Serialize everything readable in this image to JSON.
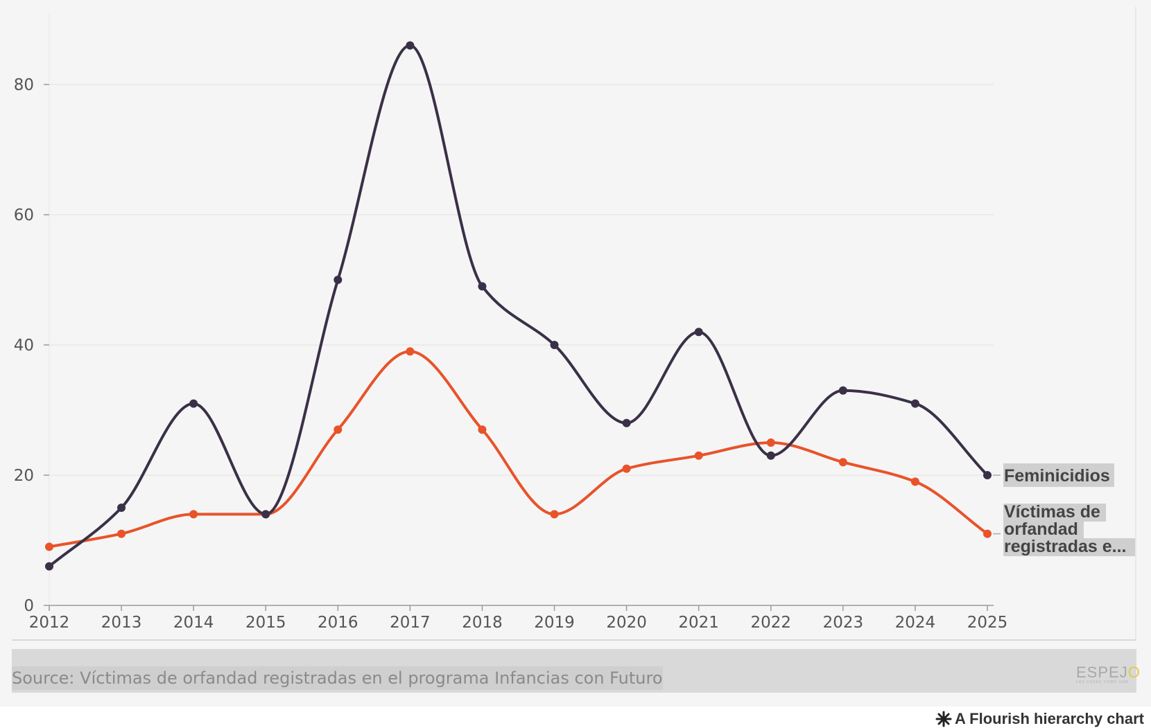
{
  "chart_data": {
    "type": "line",
    "title": "",
    "xlabel": "",
    "ylabel": "",
    "x": [
      2012,
      2013,
      2014,
      2015,
      2016,
      2017,
      2018,
      2019,
      2020,
      2021,
      2022,
      2023,
      2024,
      2025
    ],
    "x_tick_labels": [
      "2012",
      "2013",
      "2014",
      "2015",
      "2016",
      "2017",
      "2018",
      "2019",
      "2020",
      "2021",
      "2022",
      "2023",
      "2024",
      "2025"
    ],
    "y_ticks": [
      0,
      20,
      40,
      60,
      80
    ],
    "y_tick_labels": [
      "0",
      "20",
      "40",
      "60",
      "80"
    ],
    "ylim": [
      0,
      90
    ],
    "grid": true,
    "series": [
      {
        "name": "Feminicidios",
        "label": "Feminicidios",
        "color": "#3a3047",
        "values": [
          6,
          15,
          31,
          14,
          50,
          86,
          49,
          40,
          28,
          42,
          23,
          33,
          31,
          20
        ]
      },
      {
        "name": "Víctimas de orfandad registradas en el programa Infancias con Futuro",
        "label_lines": [
          "Víctimas de",
          "orfandad",
          "registradas e..."
        ],
        "color": "#e8532a",
        "values": [
          9,
          11,
          14,
          14,
          27,
          39,
          27,
          14,
          21,
          23,
          25,
          22,
          19,
          11
        ]
      }
    ]
  },
  "footer": {
    "source": "Source: Víctimas de orfandad registradas en el programa Infancias con Futuro",
    "logo_main": "ESPEJ",
    "logo_accent": "O",
    "logo_tagline": "LAS COSAS COMO SON",
    "credit_icon": "flourish-asterisk-icon",
    "credit": "A Flourish hierarchy chart"
  }
}
